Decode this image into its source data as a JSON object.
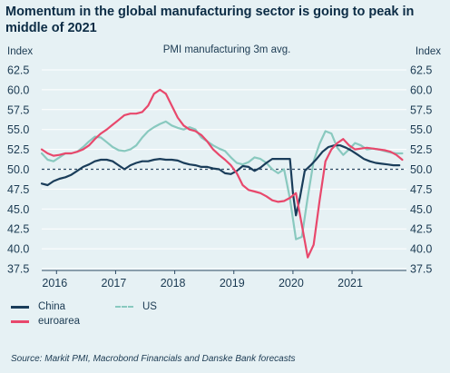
{
  "title": "Momentum in the global manufacturing sector is going to peak in middle of 2021",
  "source": "Source: Markit PMI, Macrobond Financials and Danske Bank forecasts",
  "colors": {
    "china": "#1a3d5a",
    "euroarea": "#e8486c",
    "us": "#89c9bf",
    "reference": "#2d4a63"
  },
  "chart_data": {
    "type": "line",
    "subtitle": "PMI manufacturing 3m avg.",
    "ylabel_left": "Index",
    "ylabel_right": "Index",
    "ylim": [
      37.5,
      62.5
    ],
    "yticks": [
      37.5,
      40.0,
      42.5,
      45.0,
      47.5,
      50.0,
      52.5,
      55.0,
      57.5,
      60.0,
      62.5
    ],
    "ytick_labels": [
      "37.5",
      "40.0",
      "42.5",
      "45.0",
      "47.5",
      "50.0",
      "52.5",
      "55.0",
      "57.5",
      "60.0",
      "62.5"
    ],
    "xlim": [
      2015.75,
      2021.92
    ],
    "xticks": [
      2016,
      2017,
      2018,
      2019,
      2020,
      2021
    ],
    "xtick_labels": [
      "2016",
      "2017",
      "2018",
      "2019",
      "2020",
      "2021"
    ],
    "reference_line": 50,
    "grid": true,
    "legend": "bottom",
    "series": [
      {
        "name": "China",
        "key": "china",
        "x": [
          2015.75,
          2015.85,
          2015.95,
          2016.05,
          2016.15,
          2016.25,
          2016.35,
          2016.45,
          2016.55,
          2016.65,
          2016.75,
          2016.85,
          2016.95,
          2017.05,
          2017.15,
          2017.25,
          2017.35,
          2017.45,
          2017.55,
          2017.65,
          2017.75,
          2017.85,
          2017.95,
          2018.05,
          2018.15,
          2018.25,
          2018.35,
          2018.45,
          2018.55,
          2018.65,
          2018.75,
          2018.85,
          2018.95,
          2019.05,
          2019.15,
          2019.25,
          2019.35,
          2019.45,
          2019.55,
          2019.65,
          2019.75,
          2019.85,
          2019.95,
          2020.0,
          2020.05,
          2020.12,
          2020.2,
          2020.3,
          2020.4,
          2020.5,
          2020.6,
          2020.7,
          2020.8,
          2020.9,
          2021.0,
          2021.1,
          2021.2,
          2021.3,
          2021.4,
          2021.5,
          2021.6,
          2021.7,
          2021.8
        ],
        "values": [
          48.2,
          48.0,
          48.5,
          48.8,
          49.0,
          49.3,
          49.8,
          50.3,
          50.6,
          51.0,
          51.2,
          51.2,
          51.0,
          50.5,
          50.0,
          50.5,
          50.8,
          51.0,
          51.0,
          51.2,
          51.3,
          51.2,
          51.2,
          51.1,
          50.8,
          50.6,
          50.5,
          50.3,
          50.3,
          50.1,
          50.0,
          49.5,
          49.4,
          49.8,
          50.4,
          50.3,
          49.8,
          50.2,
          50.8,
          51.3,
          51.3,
          51.3,
          51.3,
          47.0,
          44.2,
          46.5,
          49.8,
          50.5,
          51.3,
          52.2,
          52.8,
          53.0,
          53.0,
          52.7,
          52.3,
          51.8,
          51.3,
          51.0,
          50.8,
          50.7,
          50.6,
          50.5,
          50.5
        ]
      },
      {
        "name": "euroarea",
        "key": "euroarea",
        "x": [
          2015.75,
          2015.85,
          2015.95,
          2016.05,
          2016.15,
          2016.25,
          2016.35,
          2016.45,
          2016.55,
          2016.65,
          2016.75,
          2016.85,
          2016.95,
          2017.05,
          2017.15,
          2017.25,
          2017.35,
          2017.45,
          2017.55,
          2017.65,
          2017.75,
          2017.85,
          2017.95,
          2018.05,
          2018.15,
          2018.25,
          2018.35,
          2018.45,
          2018.55,
          2018.65,
          2018.75,
          2018.85,
          2018.95,
          2019.05,
          2019.15,
          2019.25,
          2019.35,
          2019.45,
          2019.55,
          2019.65,
          2019.75,
          2019.85,
          2019.95,
          2020.05,
          2020.15,
          2020.25,
          2020.35,
          2020.45,
          2020.55,
          2020.65,
          2020.75,
          2020.85,
          2020.95,
          2021.05,
          2021.15,
          2021.25,
          2021.35,
          2021.45,
          2021.55,
          2021.65,
          2021.75,
          2021.85
        ],
        "values": [
          52.5,
          52.0,
          51.7,
          51.8,
          52.0,
          52.0,
          52.2,
          52.5,
          53.0,
          53.8,
          54.5,
          55.0,
          55.6,
          56.2,
          56.8,
          57.0,
          57.0,
          57.2,
          58.0,
          59.5,
          60.0,
          59.5,
          58.0,
          56.5,
          55.5,
          55.0,
          54.8,
          54.3,
          53.5,
          52.5,
          51.8,
          51.2,
          50.5,
          49.5,
          48.0,
          47.4,
          47.2,
          47.0,
          46.6,
          46.1,
          45.9,
          46.0,
          46.4,
          47.0,
          43.0,
          38.9,
          40.5,
          46.0,
          51.0,
          52.5,
          53.3,
          53.8,
          53.0,
          52.5,
          52.6,
          52.7,
          52.6,
          52.5,
          52.4,
          52.2,
          51.8,
          51.2
        ]
      },
      {
        "name": "US",
        "key": "us",
        "x": [
          2015.75,
          2015.85,
          2015.95,
          2016.05,
          2016.15,
          2016.25,
          2016.35,
          2016.45,
          2016.55,
          2016.65,
          2016.75,
          2016.85,
          2016.95,
          2017.05,
          2017.15,
          2017.25,
          2017.35,
          2017.45,
          2017.55,
          2017.65,
          2017.75,
          2017.85,
          2017.95,
          2018.05,
          2018.15,
          2018.25,
          2018.35,
          2018.45,
          2018.55,
          2018.65,
          2018.75,
          2018.85,
          2018.95,
          2019.05,
          2019.15,
          2019.25,
          2019.35,
          2019.45,
          2019.55,
          2019.65,
          2019.75,
          2019.85,
          2019.95,
          2020.05,
          2020.15,
          2020.25,
          2020.35,
          2020.45,
          2020.55,
          2020.65,
          2020.75,
          2020.85,
          2020.95,
          2021.05,
          2021.15,
          2021.25,
          2021.35,
          2021.45,
          2021.55,
          2021.65,
          2021.75,
          2021.85
        ],
        "values": [
          52.0,
          51.2,
          51.0,
          51.5,
          52.0,
          52.0,
          52.2,
          52.8,
          53.5,
          54.1,
          54.0,
          53.4,
          52.8,
          52.4,
          52.3,
          52.5,
          53.0,
          54.0,
          54.8,
          55.3,
          55.7,
          56.0,
          55.5,
          55.2,
          55.0,
          55.3,
          55.0,
          54.0,
          53.5,
          53.0,
          52.6,
          52.3,
          51.5,
          50.8,
          50.6,
          50.9,
          51.5,
          51.3,
          50.8,
          50.0,
          49.5,
          50.0,
          46.3,
          41.2,
          41.5,
          46.5,
          51.0,
          53.2,
          54.8,
          54.5,
          52.7,
          51.8,
          52.5,
          53.3,
          53.0,
          52.5,
          52.6,
          52.5,
          52.3,
          52.1,
          52.0,
          52.0
        ]
      }
    ]
  }
}
